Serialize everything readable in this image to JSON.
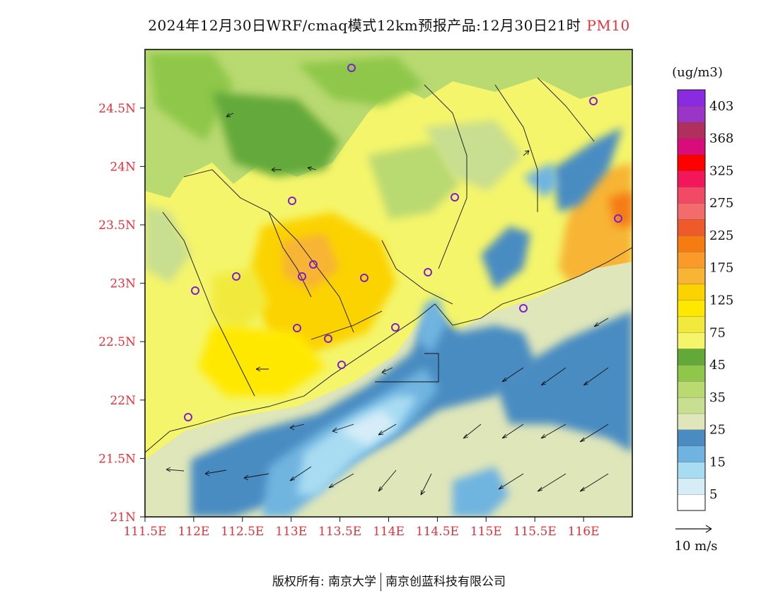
{
  "title": {
    "main": "2024年12月30日WRF/cmaq模式12km预报产品:12月30日21时",
    "pollutant": "PM10"
  },
  "colorbar": {
    "unit": "(ug/m3)",
    "bins": [
      {
        "color": "#ffffff"
      },
      {
        "color": "#d6edf8"
      },
      {
        "color": "#a8dcf2"
      },
      {
        "color": "#6fb4e0"
      },
      {
        "color": "#4a8cc2"
      },
      {
        "color": "#dfe6b9"
      },
      {
        "color": "#c8de90"
      },
      {
        "color": "#b9d971"
      },
      {
        "color": "#8ec74a"
      },
      {
        "color": "#63a93a"
      },
      {
        "color": "#f4f56a"
      },
      {
        "color": "#f1ea3c"
      },
      {
        "color": "#ffe800"
      },
      {
        "color": "#fbd300"
      },
      {
        "color": "#f7b435"
      },
      {
        "color": "#fa9a2a"
      },
      {
        "color": "#f57b12"
      },
      {
        "color": "#ee5a2a"
      },
      {
        "color": "#f36b6b"
      },
      {
        "color": "#f24a66"
      },
      {
        "color": "#f3165a"
      },
      {
        "color": "#ff0000"
      },
      {
        "color": "#d80c7a"
      },
      {
        "color": "#b02f5c"
      },
      {
        "color": "#9a35c8"
      },
      {
        "color": "#8a2be2"
      }
    ],
    "labels": [
      "5",
      "15",
      "25",
      "35",
      "45",
      "75",
      "125",
      "175",
      "225",
      "275",
      "325",
      "368",
      "403"
    ]
  },
  "wind_scale": {
    "label": "10 m/s"
  },
  "axes": {
    "x_ticks": [
      "111.5E",
      "112E",
      "112.5E",
      "113E",
      "113.5E",
      "114E",
      "114.5E",
      "115E",
      "115.5E",
      "116E"
    ],
    "y_ticks": [
      "21N",
      "21.5N",
      "22N",
      "22.5N",
      "23N",
      "23.5N",
      "24N",
      "24.5N"
    ]
  },
  "footer": {
    "left": "版权所有: 南京大学",
    "right": "南京创蓝科技有限公司"
  }
}
